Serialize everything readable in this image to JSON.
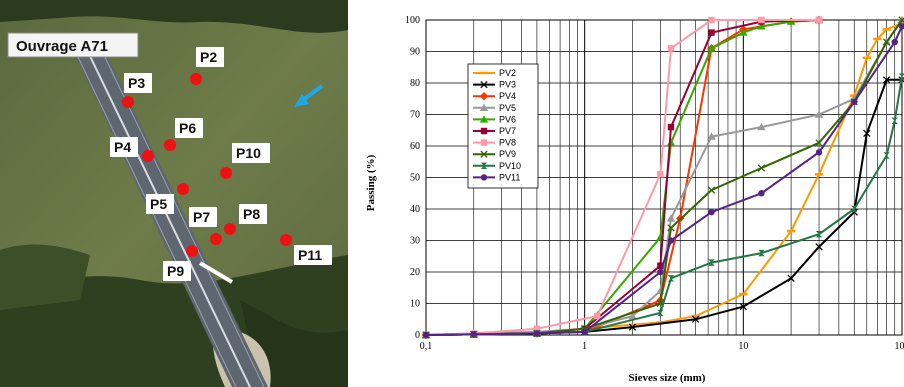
{
  "photo": {
    "title": "Ouvrage A71",
    "points": [
      "P2",
      "P3",
      "P4",
      "P5",
      "P6",
      "P7",
      "P8",
      "P9",
      "P10",
      "P11"
    ]
  },
  "chart_data": {
    "type": "line",
    "xscale": "log",
    "xlim": [
      0.1,
      100
    ],
    "ylim": [
      0,
      100
    ],
    "xticks": [
      "0,1",
      "1",
      "10",
      "100"
    ],
    "yticks": [
      "0",
      "10",
      "20",
      "30",
      "40",
      "50",
      "60",
      "70",
      "80",
      "90",
      "100"
    ],
    "xlabel": "Sieves size (mm)",
    "ylabel": "Passing (%)",
    "grid": true,
    "legend_position": "left",
    "series": [
      {
        "name": "PV2",
        "color": "#ff9900",
        "marker": "dash",
        "x": [
          0.1,
          0.2,
          0.5,
          1,
          3,
          5,
          10,
          20,
          30,
          50,
          60,
          70,
          80,
          100
        ],
        "y": [
          0,
          0.3,
          0.8,
          2,
          4,
          6,
          13,
          33,
          51,
          76,
          88,
          94,
          97,
          99
        ]
      },
      {
        "name": "PV3",
        "color": "#000000",
        "marker": "x",
        "x": [
          0.1,
          0.2,
          0.5,
          1,
          2,
          5,
          10,
          20,
          30,
          50,
          60,
          80,
          100
        ],
        "y": [
          0,
          0.2,
          0.5,
          1,
          2.5,
          5,
          9,
          18,
          28,
          39,
          64,
          81,
          81
        ]
      },
      {
        "name": "PV4",
        "color": "#ff3300",
        "marker": "diamond",
        "x": [
          0.1,
          0.2,
          0.5,
          1,
          3,
          4,
          6.3,
          10,
          20,
          30
        ],
        "y": [
          0,
          0.3,
          0.5,
          1,
          11,
          37,
          91,
          97,
          99.5,
          100
        ]
      },
      {
        "name": "PV5",
        "color": "#999999",
        "marker": "triangle",
        "x": [
          0.1,
          0.2,
          0.5,
          1,
          2,
          3,
          3.5,
          6.3,
          13,
          30,
          50,
          80,
          100
        ],
        "y": [
          0,
          0.5,
          1,
          2,
          6,
          14,
          37,
          63,
          66,
          70,
          75,
          93,
          100
        ]
      },
      {
        "name": "PV6",
        "color": "#33aa00",
        "marker": "triangle",
        "x": [
          0.1,
          0.2,
          0.5,
          1,
          3,
          3.5,
          6.3,
          10,
          13,
          20,
          30
        ],
        "y": [
          0,
          0.2,
          0.5,
          2,
          31,
          61,
          91,
          96,
          98,
          99.5,
          100
        ]
      },
      {
        "name": "PV7",
        "color": "#990033",
        "marker": "square",
        "x": [
          0.1,
          0.2,
          0.5,
          1,
          3,
          3.5,
          6.3,
          13,
          30
        ],
        "y": [
          0,
          0.2,
          0.5,
          2,
          22,
          66,
          96,
          99.5,
          100
        ]
      },
      {
        "name": "PV8",
        "color": "#ff99aa",
        "marker": "square",
        "x": [
          0.1,
          0.2,
          0.5,
          1.2,
          3,
          3.5,
          6.3,
          13,
          30
        ],
        "y": [
          0,
          0.5,
          2,
          6,
          51,
          91,
          100,
          100,
          100
        ]
      },
      {
        "name": "PV9",
        "color": "#336600",
        "marker": "x",
        "x": [
          0.1,
          0.2,
          0.5,
          1,
          3,
          3.5,
          6.3,
          13,
          30,
          50,
          80,
          100
        ],
        "y": [
          0,
          0.2,
          0.5,
          2,
          10,
          34,
          46,
          53,
          61,
          74,
          93,
          100
        ]
      },
      {
        "name": "PV10",
        "color": "#227744",
        "marker": "hourglass",
        "x": [
          0.1,
          0.2,
          0.5,
          1,
          3,
          3.5,
          6.3,
          13,
          30,
          50,
          80,
          90,
          100
        ],
        "y": [
          0,
          0.2,
          0.5,
          1,
          7,
          18,
          23,
          26,
          32,
          40,
          57,
          68,
          82
        ]
      },
      {
        "name": "PV11",
        "color": "#552288",
        "marker": "circle",
        "x": [
          0.1,
          0.2,
          0.5,
          1,
          3,
          3.5,
          6.3,
          13,
          30,
          50,
          90,
          100
        ],
        "y": [
          0,
          0.2,
          0.5,
          1,
          20,
          30,
          39,
          45,
          58,
          74,
          93,
          98
        ]
      }
    ]
  }
}
